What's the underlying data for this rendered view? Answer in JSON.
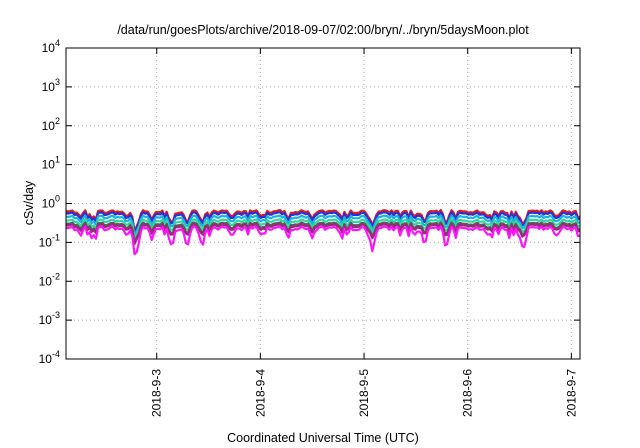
{
  "chart_data": {
    "type": "line",
    "title": "/data/run/goesPlots/archive/2018-09-07/02:00/bryn/../bryn/5daysMoon.plot",
    "xlabel": "Coordinated Universal Time (UTC)",
    "ylabel": "cSv/day",
    "yscale": "log",
    "ylim": [
      0.0001,
      10000
    ],
    "xlim": [
      "2018-09-02 03:00",
      "2018-09-07 02:00"
    ],
    "y_ticks": [
      {
        "base": "10",
        "exp": "-4",
        "value": 0.0001
      },
      {
        "base": "10",
        "exp": "-3",
        "value": 0.001
      },
      {
        "base": "10",
        "exp": "-2",
        "value": 0.01
      },
      {
        "base": "10",
        "exp": "-1",
        "value": 0.1
      },
      {
        "base": "10",
        "exp": "0",
        "value": 1
      },
      {
        "base": "10",
        "exp": "1",
        "value": 10
      },
      {
        "base": "10",
        "exp": "2",
        "value": 100
      },
      {
        "base": "10",
        "exp": "3",
        "value": 1000
      },
      {
        "base": "10",
        "exp": "4",
        "value": 10000
      }
    ],
    "x_ticks": [
      {
        "label": "2018-9-3",
        "date": "2018-09-03"
      },
      {
        "label": "2018-9-4",
        "date": "2018-09-04"
      },
      {
        "label": "2018-9-5",
        "date": "2018-09-05"
      },
      {
        "label": "2018-9-6",
        "date": "2018-09-06"
      },
      {
        "label": "2018-9-7",
        "date": "2018-09-07"
      }
    ],
    "grid": true,
    "series": [
      {
        "color": "#e01c1c",
        "base": 0.62,
        "dip_scale": 0.85
      },
      {
        "color": "#2830d8",
        "base": 0.55,
        "dip_scale": 0.85
      },
      {
        "color": "#1ab2e0",
        "base": 0.45,
        "dip_scale": 0.88
      },
      {
        "color": "#2ed8a0",
        "base": 0.36,
        "dip_scale": 0.9
      },
      {
        "color": "#5a5a5a",
        "base": 0.3,
        "dip_scale": 0.9
      },
      {
        "color": "#9a2a7a",
        "base": 0.27,
        "dip_scale": 0.9
      },
      {
        "color": "#ff14ff",
        "base": 0.23,
        "dip_scale": 0.6
      }
    ],
    "dips": [
      {
        "date": "2018-09-02 09:00",
        "factor": 0.75
      },
      {
        "date": "2018-09-02 17:00",
        "factor": 0.8
      },
      {
        "date": "2018-09-02 19:30",
        "factor": 0.65
      },
      {
        "date": "2018-09-02 23:00",
        "factor": 0.8
      },
      {
        "date": "2018-09-03 03:00",
        "factor": 0.85
      },
      {
        "date": "2018-09-02 19:00",
        "factor": 0.55
      },
      {
        "date": "2018-09-03 03:30",
        "factor": 0.6
      },
      {
        "date": "2018-09-03 07:00",
        "factor": 0.55
      },
      {
        "date": "2018-09-03 10:30",
        "factor": 0.55
      },
      {
        "date": "2018-09-03 17:30",
        "factor": 0.8
      },
      {
        "date": "2018-09-04 00:30",
        "factor": 0.8
      },
      {
        "date": "2018-09-04 12:00",
        "factor": 0.85
      },
      {
        "date": "2018-09-04 18:30",
        "factor": 0.8
      },
      {
        "date": "2018-09-05 01:00",
        "factor": 0.8
      },
      {
        "date": "2018-09-05 02:00",
        "factor": 0.55
      },
      {
        "date": "2018-09-05 12:00",
        "factor": 0.8
      },
      {
        "date": "2018-09-05 14:00",
        "factor": 0.6
      },
      {
        "date": "2018-09-05 19:00",
        "factor": 0.55
      },
      {
        "date": "2018-09-06 05:00",
        "factor": 0.75
      },
      {
        "date": "2018-09-06 12:00",
        "factor": 0.75
      },
      {
        "date": "2018-09-06 13:00",
        "factor": 0.55
      },
      {
        "date": "2018-09-06 20:30",
        "factor": 0.75
      }
    ]
  }
}
